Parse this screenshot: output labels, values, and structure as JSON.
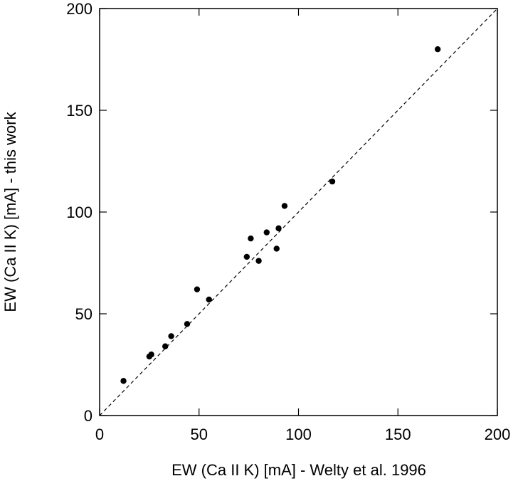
{
  "chart_data": {
    "type": "scatter",
    "title": "",
    "xlabel": "EW (Ca II K) [mA] - Welty et al. 1996",
    "ylabel": "EW (Ca II K) [mA] - this work",
    "xlim": [
      0,
      200
    ],
    "ylim": [
      0,
      200
    ],
    "xticks": [
      "0",
      "50",
      "100",
      "150",
      "200"
    ],
    "yticks": [
      "0",
      "50",
      "100",
      "150",
      "200"
    ],
    "grid": false,
    "reference_line": "y = x (dashed)",
    "points": [
      {
        "x": 12,
        "y": 17
      },
      {
        "x": 25,
        "y": 29
      },
      {
        "x": 26,
        "y": 30
      },
      {
        "x": 33,
        "y": 34
      },
      {
        "x": 36,
        "y": 39
      },
      {
        "x": 44,
        "y": 45
      },
      {
        "x": 49,
        "y": 62
      },
      {
        "x": 55,
        "y": 57
      },
      {
        "x": 74,
        "y": 78
      },
      {
        "x": 76,
        "y": 87
      },
      {
        "x": 80,
        "y": 76
      },
      {
        "x": 84,
        "y": 90
      },
      {
        "x": 89,
        "y": 82
      },
      {
        "x": 90,
        "y": 92
      },
      {
        "x": 93,
        "y": 103
      },
      {
        "x": 117,
        "y": 115
      },
      {
        "x": 170,
        "y": 180
      }
    ],
    "colors": {
      "marker": "#000000",
      "axis": "#000000",
      "reference_line": "#000000"
    }
  }
}
